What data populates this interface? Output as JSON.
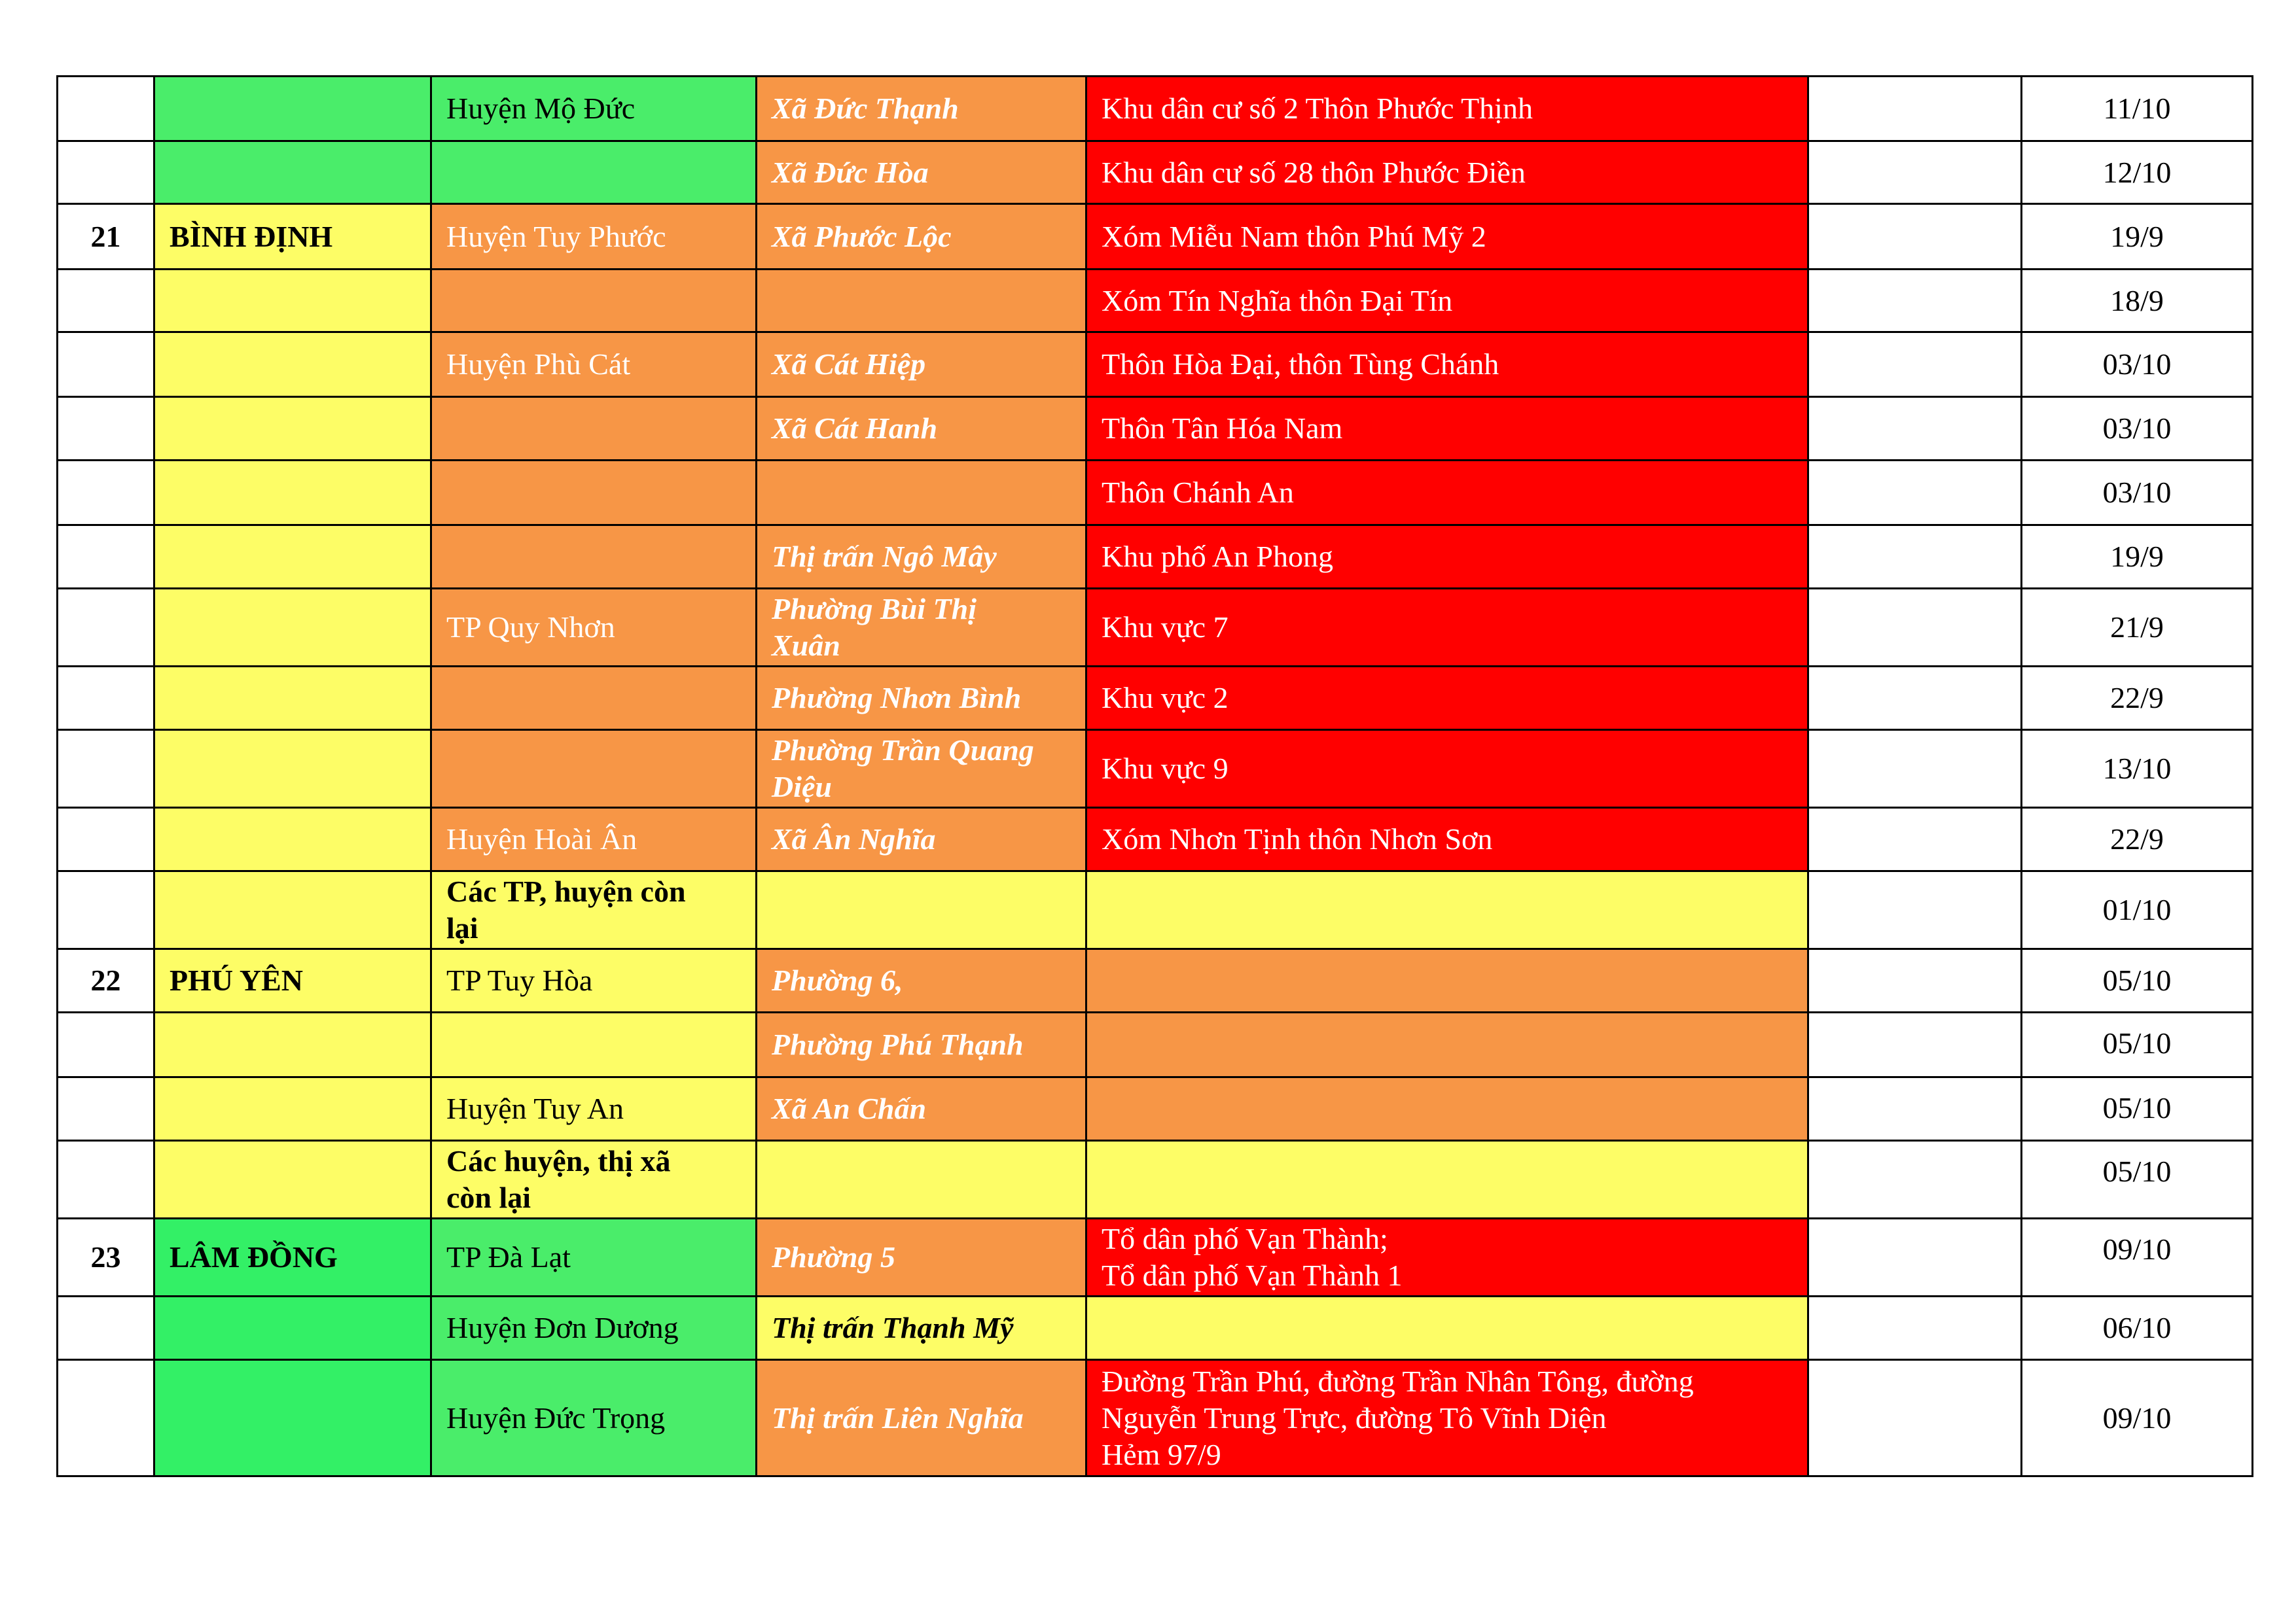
{
  "palette": {
    "W": "#ffffff",
    "G": "#4aed6a",
    "G2": "#33f066",
    "Y": "#fdfd66",
    "O": "#f79646",
    "R": "#ff0000",
    "ink_dark": "#000000",
    "ink_light": "#ffffff"
  },
  "rows": [
    {
      "cells": [
        {
          "t": "",
          "f": "W"
        },
        {
          "t": "",
          "f": "G"
        },
        {
          "t": "Huyện Mộ Đức",
          "f": "G"
        },
        {
          "t": "Xã Đức Thạnh",
          "f": "O",
          "i": "L"
        },
        {
          "t": "Khu dân cư số 2 Thôn Phước Thịnh",
          "f": "R",
          "i": "L"
        },
        {
          "t": "",
          "f": "W"
        },
        {
          "t": "11/10",
          "f": "W"
        }
      ]
    },
    {
      "cells": [
        {
          "t": "",
          "f": "W"
        },
        {
          "t": "",
          "f": "G"
        },
        {
          "t": "",
          "f": "G"
        },
        {
          "t": "Xã Đức Hòa",
          "f": "O",
          "i": "L"
        },
        {
          "t": "Khu dân cư số 28 thôn Phước Điền",
          "f": "R",
          "i": "L"
        },
        {
          "t": "",
          "f": "W"
        },
        {
          "t": "12/10",
          "f": "W"
        }
      ]
    },
    {
      "cells": [
        {
          "t": "21",
          "f": "W"
        },
        {
          "t": "BÌNH ĐỊNH",
          "f": "Y"
        },
        {
          "t": "Huyện Tuy Phước",
          "f": "O",
          "i": "L"
        },
        {
          "t": "Xã Phước Lộc",
          "f": "O",
          "i": "L"
        },
        {
          "t": "Xóm Miễu Nam thôn Phú Mỹ 2",
          "f": "R",
          "i": "L"
        },
        {
          "t": "",
          "f": "W"
        },
        {
          "t": "19/9",
          "f": "W"
        }
      ]
    },
    {
      "cells": [
        {
          "t": "",
          "f": "W"
        },
        {
          "t": "",
          "f": "Y"
        },
        {
          "t": "",
          "f": "O"
        },
        {
          "t": "",
          "f": "O"
        },
        {
          "t": "Xóm Tín Nghĩa thôn Đại Tín",
          "f": "R",
          "i": "L"
        },
        {
          "t": "",
          "f": "W"
        },
        {
          "t": "18/9",
          "f": "W"
        }
      ]
    },
    {
      "cells": [
        {
          "t": "",
          "f": "W"
        },
        {
          "t": "",
          "f": "Y"
        },
        {
          "t": "Huyện Phù Cát",
          "f": "O",
          "i": "L"
        },
        {
          "t": "Xã Cát Hiệp",
          "f": "O",
          "i": "L"
        },
        {
          "t": "Thôn Hòa Đại, thôn Tùng Chánh",
          "f": "R",
          "i": "L"
        },
        {
          "t": "",
          "f": "W"
        },
        {
          "t": "03/10",
          "f": "W"
        }
      ]
    },
    {
      "cells": [
        {
          "t": "",
          "f": "W"
        },
        {
          "t": "",
          "f": "Y"
        },
        {
          "t": "",
          "f": "O"
        },
        {
          "t": "Xã Cát Hanh",
          "f": "O",
          "i": "L"
        },
        {
          "t": "Thôn Tân Hóa Nam",
          "f": "R",
          "i": "L"
        },
        {
          "t": "",
          "f": "W"
        },
        {
          "t": "03/10",
          "f": "W"
        }
      ]
    },
    {
      "cells": [
        {
          "t": "",
          "f": "W"
        },
        {
          "t": "",
          "f": "Y"
        },
        {
          "t": "",
          "f": "O"
        },
        {
          "t": "",
          "f": "O"
        },
        {
          "t": "Thôn Chánh An",
          "f": "R",
          "i": "L"
        },
        {
          "t": "",
          "f": "W"
        },
        {
          "t": "03/10",
          "f": "W"
        }
      ]
    },
    {
      "cells": [
        {
          "t": "",
          "f": "W"
        },
        {
          "t": "",
          "f": "Y"
        },
        {
          "t": "",
          "f": "O"
        },
        {
          "t": "Thị trấn Ngô Mây",
          "f": "O",
          "i": "L"
        },
        {
          "t": "Khu phố An Phong",
          "f": "R",
          "i": "L"
        },
        {
          "t": "",
          "f": "W"
        },
        {
          "t": "19/9",
          "f": "W"
        }
      ]
    },
    {
      "cells": [
        {
          "t": "",
          "f": "W"
        },
        {
          "t": "",
          "f": "Y"
        },
        {
          "t": "TP Quy Nhơn",
          "f": "O",
          "i": "L"
        },
        {
          "t": "Phường Bùi Thị\nXuân",
          "f": "O",
          "i": "L"
        },
        {
          "t": "Khu vực 7",
          "f": "R",
          "i": "L"
        },
        {
          "t": "",
          "f": "W"
        },
        {
          "t": "21/9",
          "f": "W"
        }
      ]
    },
    {
      "cells": [
        {
          "t": "",
          "f": "W"
        },
        {
          "t": "",
          "f": "Y"
        },
        {
          "t": "",
          "f": "O"
        },
        {
          "t": "Phường Nhơn Bình",
          "f": "O",
          "i": "L"
        },
        {
          "t": "Khu vực 2",
          "f": "R",
          "i": "L"
        },
        {
          "t": "",
          "f": "W"
        },
        {
          "t": "22/9",
          "f": "W"
        }
      ]
    },
    {
      "cells": [
        {
          "t": "",
          "f": "W"
        },
        {
          "t": "",
          "f": "Y"
        },
        {
          "t": "",
          "f": "O"
        },
        {
          "t": "Phường Trần Quang\nDiệu",
          "f": "O",
          "i": "L"
        },
        {
          "t": "Khu vực 9",
          "f": "R",
          "i": "L"
        },
        {
          "t": "",
          "f": "W"
        },
        {
          "t": "13/10",
          "f": "W"
        }
      ]
    },
    {
      "cells": [
        {
          "t": "",
          "f": "W"
        },
        {
          "t": "",
          "f": "Y"
        },
        {
          "t": "Huyện Hoài Ân",
          "f": "O",
          "i": "L"
        },
        {
          "t": "Xã Ân Nghĩa",
          "f": "O",
          "i": "L"
        },
        {
          "t": "Xóm Nhơn Tịnh thôn Nhơn Sơn",
          "f": "R",
          "i": "L"
        },
        {
          "t": "",
          "f": "W"
        },
        {
          "t": "22/9",
          "f": "W"
        }
      ]
    },
    {
      "cells": [
        {
          "t": "",
          "f": "W"
        },
        {
          "t": "",
          "f": "Y"
        },
        {
          "t": "Các TP, huyện còn\nlại",
          "f": "Y",
          "b": true
        },
        {
          "t": "",
          "f": "Y"
        },
        {
          "t": "",
          "f": "Y"
        },
        {
          "t": "",
          "f": "W"
        },
        {
          "t": "01/10",
          "f": "W"
        }
      ]
    },
    {
      "cells": [
        {
          "t": "22",
          "f": "W"
        },
        {
          "t": "PHÚ YÊN",
          "f": "Y"
        },
        {
          "t": "TP Tuy Hòa",
          "f": "Y"
        },
        {
          "t": "Phường 6,",
          "f": "O",
          "i": "L"
        },
        {
          "t": "",
          "f": "O"
        },
        {
          "t": "",
          "f": "W"
        },
        {
          "t": "05/10",
          "f": "W"
        }
      ]
    },
    {
      "cells": [
        {
          "t": "",
          "f": "W"
        },
        {
          "t": "",
          "f": "Y"
        },
        {
          "t": "",
          "f": "Y"
        },
        {
          "t": "Phường Phú Thạnh",
          "f": "O",
          "i": "L"
        },
        {
          "t": "",
          "f": "O"
        },
        {
          "t": "",
          "f": "W"
        },
        {
          "t": "05/10",
          "f": "W"
        }
      ]
    },
    {
      "cells": [
        {
          "t": "",
          "f": "W"
        },
        {
          "t": "",
          "f": "Y"
        },
        {
          "t": "Huyện Tuy An",
          "f": "Y"
        },
        {
          "t": "Xã An Chấn",
          "f": "O",
          "i": "L"
        },
        {
          "t": "",
          "f": "O"
        },
        {
          "t": "",
          "f": "W"
        },
        {
          "t": "05/10",
          "f": "W"
        }
      ]
    },
    {
      "cells": [
        {
          "t": "",
          "f": "W"
        },
        {
          "t": "",
          "f": "Y"
        },
        {
          "t": "Các huyện, thị xã\ncòn lại",
          "f": "Y",
          "b": true
        },
        {
          "t": "",
          "f": "Y"
        },
        {
          "t": "",
          "f": "Y"
        },
        {
          "t": "",
          "f": "W"
        },
        {
          "t": "05/10",
          "f": "W"
        }
      ]
    },
    {
      "cells": [
        {
          "t": "23",
          "f": "W"
        },
        {
          "t": "LÂM ĐỒNG",
          "f": "G2"
        },
        {
          "t": "TP Đà Lạt",
          "f": "G"
        },
        {
          "t": "Phường 5",
          "f": "O",
          "i": "L"
        },
        {
          "t": "Tổ dân phố Vạn Thành;\nTổ dân phố Vạn Thành 1",
          "f": "R",
          "i": "L"
        },
        {
          "t": "",
          "f": "W"
        },
        {
          "t": "09/10",
          "f": "W"
        }
      ]
    },
    {
      "cells": [
        {
          "t": "",
          "f": "W"
        },
        {
          "t": "",
          "f": "G2"
        },
        {
          "t": "Huyện Đơn Dương",
          "f": "G"
        },
        {
          "t": "Thị trấn Thạnh Mỹ",
          "f": "Y"
        },
        {
          "t": "",
          "f": "Y"
        },
        {
          "t": "",
          "f": "W"
        },
        {
          "t": "06/10",
          "f": "W"
        }
      ]
    },
    {
      "cells": [
        {
          "t": "",
          "f": "W"
        },
        {
          "t": "",
          "f": "G2"
        },
        {
          "t": "Huyện Đức Trọng",
          "f": "G"
        },
        {
          "t": "Thị trấn Liên Nghĩa",
          "f": "O",
          "i": "L"
        },
        {
          "t": "Đường Trần Phú, đường Trần Nhân Tông, đường\nNguyễn Trung Trực, đường Tô Vĩnh Diện\nHẻm 97/9",
          "f": "R",
          "i": "L"
        },
        {
          "t": "",
          "f": "W"
        },
        {
          "t": "09/10",
          "f": "W"
        }
      ]
    }
  ]
}
